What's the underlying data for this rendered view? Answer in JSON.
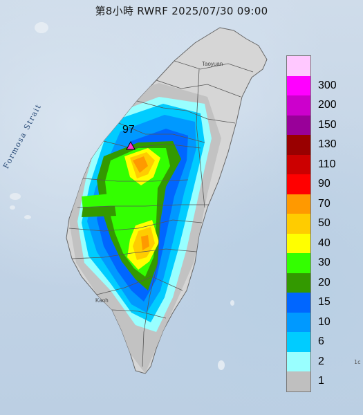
{
  "header": {
    "title": "第8小時  RWRF 2025/07/30 09:00"
  },
  "map": {
    "sea_label": "Formosa Strait",
    "places": [
      {
        "key": "taoyuan",
        "name": "Taoyuan"
      },
      {
        "key": "kaohsiung",
        "name": "Kaoh"
      }
    ],
    "peak_marker": {
      "value": "97",
      "symbol": "triangle-icon"
    },
    "edge_text": "1c"
  },
  "legend": {
    "unit_hint": "",
    "levels": [
      {
        "label": "300",
        "color": "#ffc8ff"
      },
      {
        "label": "200",
        "color": "#ff00ff"
      },
      {
        "label": "150",
        "color": "#cc00cc"
      },
      {
        "label": "130",
        "color": "#990099"
      },
      {
        "label": "110",
        "color": "#990000"
      },
      {
        "label": "90",
        "color": "#cc0000"
      },
      {
        "label": "70",
        "color": "#ff0000"
      },
      {
        "label": "50",
        "color": "#ff9900"
      },
      {
        "label": "40",
        "color": "#ffcc00"
      },
      {
        "label": "30",
        "color": "#ffff00"
      },
      {
        "label": "20",
        "color": "#33ff00"
      },
      {
        "label": "15",
        "color": "#339900"
      },
      {
        "label": "10",
        "color": "#0066ff"
      },
      {
        "label": "6",
        "color": "#0099ff"
      },
      {
        "label": "2",
        "color": "#00ccff"
      },
      {
        "label": "1",
        "color": "#99ffff"
      },
      {
        "label": "",
        "color": "#bfbfbf"
      }
    ]
  }
}
